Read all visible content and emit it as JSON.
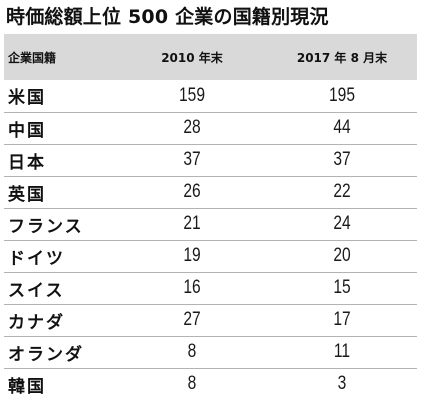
{
  "title": "時価総額上位 500 企業の国籍別現況",
  "table": {
    "headers": [
      "企業国籍",
      "2010 年末",
      "2017 年 8 月末"
    ],
    "rows": [
      {
        "country": "米国",
        "y2010": "159",
        "y2017": "195"
      },
      {
        "country": "中国",
        "y2010": "28",
        "y2017": "44"
      },
      {
        "country": "日本",
        "y2010": "37",
        "y2017": "37"
      },
      {
        "country": "英国",
        "y2010": "26",
        "y2017": "22"
      },
      {
        "country": "フランス",
        "y2010": "21",
        "y2017": "24"
      },
      {
        "country": "ドイツ",
        "y2010": "19",
        "y2017": "20"
      },
      {
        "country": "スイス",
        "y2010": "16",
        "y2017": "15"
      },
      {
        "country": "カナダ",
        "y2010": "27",
        "y2017": "17"
      },
      {
        "country": "オランダ",
        "y2010": "8",
        "y2017": "11"
      },
      {
        "country": "韓国",
        "y2010": "8",
        "y2017": "3"
      }
    ]
  },
  "colors": {
    "header_background": "#d9d9d9",
    "row_divider": "#b3b3b3",
    "text": "#111111"
  }
}
